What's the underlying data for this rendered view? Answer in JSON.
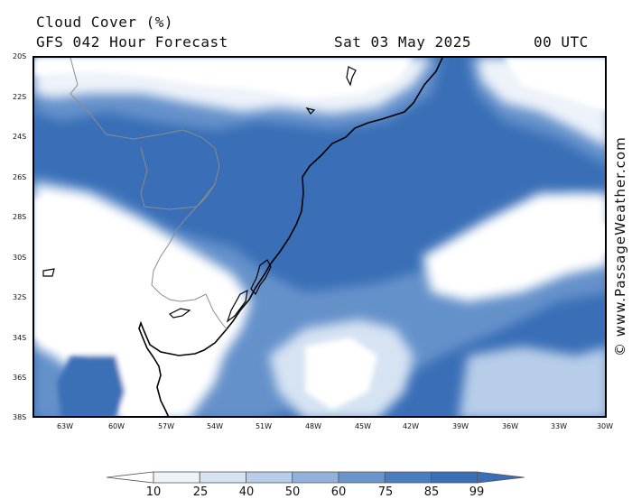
{
  "header": {
    "title": "Cloud Cover (%)",
    "model": "GFS 042 Hour Forecast",
    "date": "Sat 03 May 2025",
    "time": "00 UTC"
  },
  "credit": "© www.PassageWeather.com",
  "lat_labels": [
    "20S",
    "22S",
    "24S",
    "26S",
    "28S",
    "30S",
    "32S",
    "34S",
    "36S",
    "38S"
  ],
  "lon_labels": [
    "63W",
    "60W",
    "57W",
    "54W",
    "51W",
    "48W",
    "45W",
    "42W",
    "39W",
    "36W",
    "33W",
    "30W"
  ],
  "legend": {
    "levels": [
      "10",
      "25",
      "40",
      "50",
      "60",
      "75",
      "85",
      "99"
    ],
    "colors": [
      "#ffffff",
      "#eef3fa",
      "#d6e3f3",
      "#b7cde9",
      "#92b2dc",
      "#6a95cd",
      "#4a7dc0",
      "#3a6fb7"
    ]
  }
}
